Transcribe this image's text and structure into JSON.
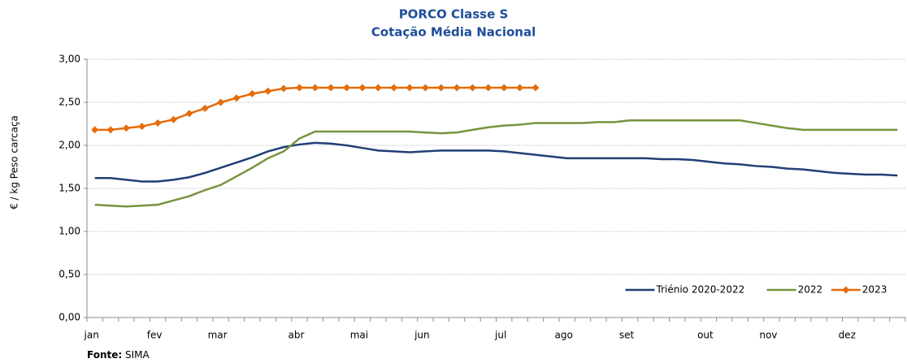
{
  "chart_data": {
    "type": "line",
    "title": "PORCO Classe S",
    "subtitle": "Cotação Média Nacional",
    "y_label": "€ / kg Peso carcaça",
    "source_label": "Fonte:",
    "source": "SIMA",
    "categories": [
      "jan",
      null,
      null,
      null,
      "fev",
      null,
      null,
      null,
      "mar",
      null,
      null,
      null,
      null,
      "abr",
      null,
      null,
      null,
      "mai",
      null,
      null,
      null,
      "jun",
      null,
      null,
      null,
      null,
      "jul",
      null,
      null,
      null,
      "ago",
      null,
      null,
      null,
      "set",
      null,
      null,
      null,
      null,
      "out",
      null,
      null,
      null,
      "nov",
      null,
      null,
      null,
      null,
      "dez",
      null,
      null,
      null
    ],
    "series": [
      {
        "name": "Triénio 2020-2022",
        "color": "#1f3f74",
        "values": [
          1.62,
          1.62,
          1.6,
          1.58,
          1.58,
          1.6,
          1.63,
          1.68,
          1.74,
          1.8,
          1.86,
          1.93,
          1.98,
          2.01,
          2.03,
          2.02,
          2.0,
          1.97,
          1.94,
          1.93,
          1.92,
          1.93,
          1.94,
          1.94,
          1.94,
          1.94,
          1.93,
          1.91,
          1.89,
          1.87,
          1.85,
          1.85,
          1.85,
          1.85,
          1.85,
          1.85,
          1.84,
          1.84,
          1.83,
          1.81,
          1.79,
          1.78,
          1.76,
          1.75,
          1.73,
          1.72,
          1.7,
          1.68,
          1.67,
          1.66,
          1.66,
          1.65
        ]
      },
      {
        "name": "2022",
        "color": "#77933c",
        "values": [
          1.31,
          1.3,
          1.29,
          1.3,
          1.31,
          1.36,
          1.41,
          1.48,
          1.54,
          1.64,
          1.74,
          1.85,
          1.93,
          2.08,
          2.16,
          2.16,
          2.16,
          2.16,
          2.16,
          2.16,
          2.16,
          2.15,
          2.14,
          2.15,
          2.18,
          2.21,
          2.23,
          2.24,
          2.26,
          2.26,
          2.26,
          2.26,
          2.27,
          2.27,
          2.29,
          2.29,
          2.29,
          2.29,
          2.29,
          2.29,
          2.29,
          2.29,
          2.26,
          2.23,
          2.2,
          2.18,
          2.18,
          2.18,
          2.18,
          2.18,
          2.18,
          2.18
        ]
      },
      {
        "name": "2023",
        "color": "#e46c0a",
        "marker": "diamond",
        "values": [
          2.18,
          2.18,
          2.2,
          2.22,
          2.26,
          2.3,
          2.37,
          2.43,
          2.5,
          2.55,
          2.6,
          2.63,
          2.66,
          2.67,
          2.67,
          2.67,
          2.67,
          2.67,
          2.67,
          2.67,
          2.67,
          2.67,
          2.67,
          2.67,
          2.67,
          2.67,
          2.67,
          2.67,
          2.67,
          null,
          null,
          null,
          null,
          null,
          null,
          null,
          null,
          null,
          null,
          null,
          null,
          null,
          null,
          null,
          null,
          null,
          null,
          null,
          null,
          null,
          null,
          null
        ]
      }
    ],
    "ylim": [
      0,
      3
    ],
    "yticks": [
      {
        "value": 0,
        "label": "0,00"
      },
      {
        "value": 0.5,
        "label": "0,50"
      },
      {
        "value": 1,
        "label": "1,00"
      },
      {
        "value": 1.5,
        "label": "1,50"
      },
      {
        "value": 2,
        "label": "2,00"
      },
      {
        "value": 2.5,
        "label": "2,50"
      },
      {
        "value": 3,
        "label": "3,00"
      }
    ],
    "grid": true,
    "legend": "lower right"
  }
}
